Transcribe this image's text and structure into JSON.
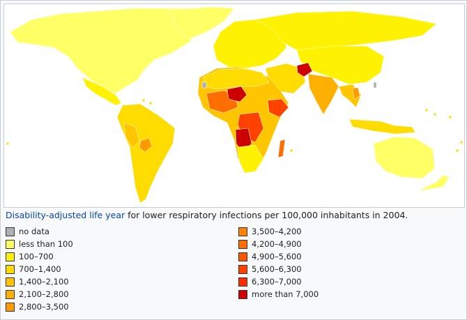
{
  "caption": {
    "link_text": "Disability-adjusted life year",
    "rest_text": " for lower respiratory infections per 100,000 inhabitants in 2004."
  },
  "legend": {
    "column1": [
      {
        "label": "no data",
        "color": "#b0b0b0"
      },
      {
        "label": "less than 100",
        "color": "#ffff66"
      },
      {
        "label": "100–700",
        "color": "#fff200"
      },
      {
        "label": "700–1,400",
        "color": "#ffdc00"
      },
      {
        "label": "1,400–2,100",
        "color": "#ffc600"
      },
      {
        "label": "2,100–2,800",
        "color": "#ffb000"
      },
      {
        "label": "2,800–3,500",
        "color": "#ff9a00"
      }
    ],
    "column2": [
      {
        "label": "3,500–4,200",
        "color": "#ff8400"
      },
      {
        "label": "4,200–4,900",
        "color": "#ff6e00"
      },
      {
        "label": "4,900–5,600",
        "color": "#ff5800"
      },
      {
        "label": "5,600–6,300",
        "color": "#ff4200"
      },
      {
        "label": "6,300–7,000",
        "color": "#ff2c00"
      },
      {
        "label": "more than 7,000",
        "color": "#cc0000"
      }
    ]
  },
  "map_colors": {
    "ocean": "#ffffff",
    "lowest": "#ffff66",
    "low": "#fff200",
    "mid_low": "#ffdc00",
    "mid": "#ffc600",
    "mid_high": "#ffb000",
    "high": "#ff9a00",
    "higher": "#ff6e00",
    "very_high": "#ff4200",
    "severe": "#ff2c00",
    "extreme": "#cc0000",
    "no_data": "#b0b0b0"
  }
}
